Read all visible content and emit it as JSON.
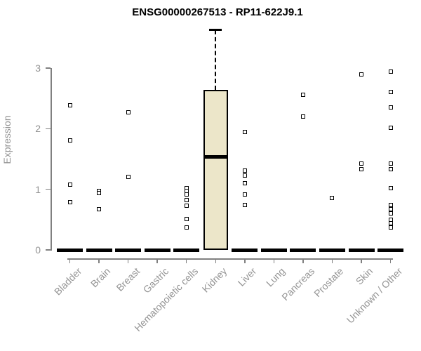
{
  "chart_data": {
    "type": "boxplot",
    "title": "ENSG00000267513 - RP11-622J9.1",
    "xlabel": "",
    "ylabel": "Expression",
    "ylim": [
      0,
      3
    ],
    "yticks": [
      0,
      1,
      2,
      3
    ],
    "grid": false,
    "legend": false,
    "categories": [
      "Bladder",
      "Brain",
      "Breast",
      "Gastric",
      "Hematopoietic cells",
      "Kidney",
      "Liver",
      "Lung",
      "Pancreas",
      "Prostate",
      "Skin",
      "Unknown / Other"
    ],
    "series": [
      {
        "category": "Bladder",
        "median": 0,
        "points": [
          2.39,
          1.81,
          1.08,
          0.79
        ]
      },
      {
        "category": "Brain",
        "median": 0,
        "points": [
          0.97,
          0.94,
          0.67
        ]
      },
      {
        "category": "Breast",
        "median": 0,
        "points": [
          2.27,
          1.2
        ]
      },
      {
        "category": "Gastric",
        "median": 0,
        "points": []
      },
      {
        "category": "Hematopoietic cells",
        "median": 0,
        "points": [
          1.02,
          0.97,
          0.92,
          0.82,
          0.73,
          0.51,
          0.37
        ]
      },
      {
        "category": "Kidney",
        "median": 1.54,
        "box": {
          "q1": 0,
          "q3": 2.64,
          "whisker_high": 3.63
        },
        "points": []
      },
      {
        "category": "Liver",
        "median": 0,
        "points": [
          1.95,
          1.31,
          1.23,
          1.1,
          0.92,
          0.74
        ]
      },
      {
        "category": "Lung",
        "median": 0,
        "points": []
      },
      {
        "category": "Pancreas",
        "median": 0,
        "points": [
          2.56,
          2.2
        ]
      },
      {
        "category": "Prostate",
        "median": 0,
        "points": [
          0.86
        ]
      },
      {
        "category": "Skin",
        "median": 0,
        "points": [
          2.9,
          1.42,
          1.33
        ]
      },
      {
        "category": "Unknown / Other",
        "median": 0,
        "points": [
          2.94,
          2.61,
          2.35,
          2.02,
          1.42,
          1.33,
          1.02,
          0.74,
          0.67,
          0.6,
          0.5,
          0.44,
          0.37
        ]
      }
    ],
    "colors": {
      "box_fill": "#ece6c9",
      "box_border": "#000000",
      "median": "#000000",
      "point_border": "#000000",
      "point_fill": "#ffffff",
      "axis": "#808080",
      "label": "#949494",
      "title": "#000000",
      "background": "#ffffff"
    }
  }
}
